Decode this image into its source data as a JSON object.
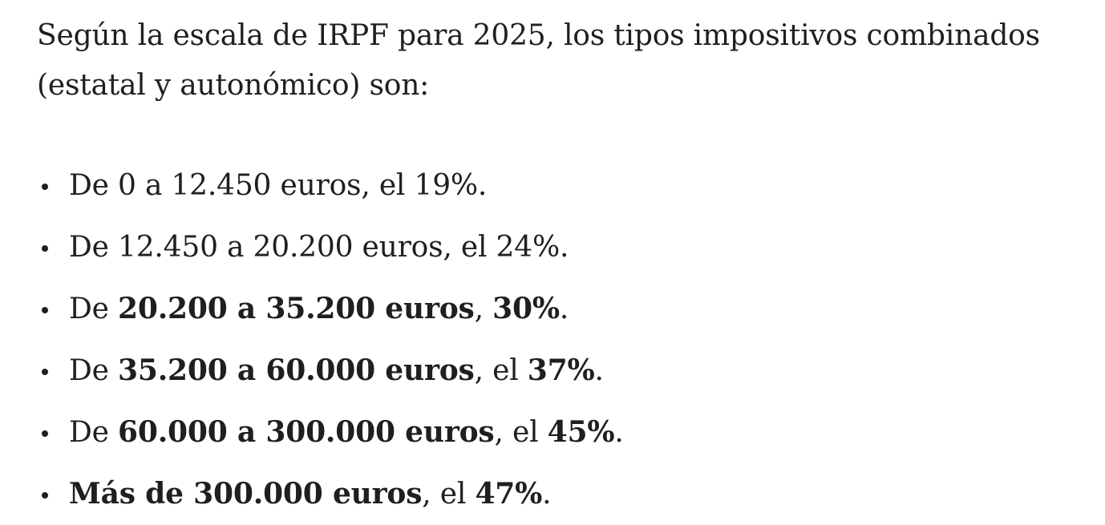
{
  "intro": {
    "line1": "Según la escala de IRPF para 2025, los tipos impositivos combinados",
    "line2": "(estatal y autonómico) son:"
  },
  "rates": [
    {
      "prefix": "De ",
      "range": "0 a 12.450  euros",
      "mid": ", el ",
      "rate": "19%",
      "end": ".",
      "bold": false
    },
    {
      "prefix": "De ",
      "range": "12.450 a 20.200 euros",
      "mid": ", el ",
      "rate": "24%",
      "end": ".",
      "bold": false
    },
    {
      "prefix": "De ",
      "range": "20.200 a 35.200 euros",
      "mid": ", ",
      "rate": "30%",
      "end": ".",
      "bold": true
    },
    {
      "prefix": "De ",
      "range": "35.200 a 60.000 euros",
      "mid": ", el ",
      "rate": "37%",
      "end": ".",
      "bold": true
    },
    {
      "prefix": "De ",
      "range": "60.000 a 300.000 euros",
      "mid": ", el ",
      "rate": "45%",
      "end": ".",
      "bold": true
    },
    {
      "prefix": "",
      "range": "Más de 300.000 euros",
      "mid": ", el ",
      "rate": "47%",
      "end": ".",
      "bold": true
    }
  ]
}
